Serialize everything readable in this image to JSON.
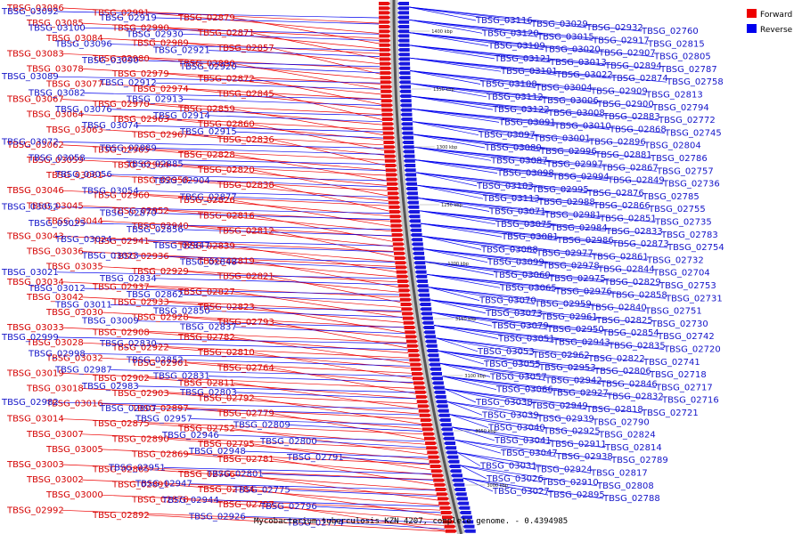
{
  "caption": "Mycobacterium tuberculosis KZN 4207, complete genome. - 0.4394985",
  "legend": [
    {
      "label": "Forward",
      "color": "#ee0000"
    },
    {
      "label": "Reverse",
      "color": "#0000ee"
    }
  ],
  "kbp_labels": [
    "1400 kbp",
    "1350 kbp",
    "1300 kbp",
    "1250 kbp",
    "1200 kbp",
    "3150 kbp",
    "3100 kbp",
    "3050 kbp",
    "3000 kbp"
  ],
  "forward_genes": [
    "TBSG_03086",
    "TBSG_03085",
    "TBSG_03084",
    "TBSG_03083",
    "TBSG_03078",
    "TBSG_03077",
    "TBSG_03067",
    "TBSG_03064",
    "TBSG_03063",
    "TBSG_03062",
    "TBSG_03059",
    "TBSG_03061",
    "TBSG_03046",
    "TBSG_03045",
    "TBSG_03044",
    "TBSG_03043",
    "TBSG_03036",
    "TBSG_03035",
    "TBSG_03034",
    "TBSG_03042",
    "TBSG_03030",
    "TBSG_03033",
    "TBSG_03028",
    "TBSG_03032",
    "TBSG_03019",
    "TBSG_03018",
    "TBSG_03016",
    "TBSG_03014",
    "TBSG_03007",
    "TBSG_03005",
    "TBSG_03003",
    "TBSG_03002",
    "TBSG_03000",
    "TBSG_02992",
    "TBSG_02991",
    "TBSG_02990",
    "TBSG_02989",
    "TBSG_02980",
    "TBSG_02979",
    "TBSG_02974",
    "TBSG_02970",
    "TBSG_02963",
    "TBSG_02967",
    "TBSG_02965",
    "TBSG_02964",
    "TBSG_02958",
    "TBSG_02960",
    "TBSG_02952",
    "TBSG_02940",
    "TBSG_02941",
    "TBSG_02936",
    "TBSG_02929",
    "TBSG_02937",
    "TBSG_02933",
    "TBSG_02928",
    "TBSG_02908",
    "TBSG_02922",
    "TBSG_02901",
    "TBSG_02902",
    "TBSG_02903",
    "TBSG_02897",
    "TBSG_02875",
    "TBSG_02890",
    "TBSG_02869",
    "TBSG_02865",
    "TBSG_02891",
    "TBSG_02878",
    "TBSG_02892",
    "TBSG_02879",
    "TBSG_02871",
    "TBSG_02857",
    "TBSG_02880",
    "TBSG_02872",
    "TBSG_02845",
    "TBSG_02859",
    "TBSG_02860",
    "TBSG_02836",
    "TBSG_02828",
    "TBSG_02820",
    "TBSG_02838",
    "TBSG_02826",
    "TBSG_02816",
    "TBSG_02812",
    "TBSG_02839",
    "TBSG_02819",
    "TBSG_02821",
    "TBSG_02827",
    "TBSG_02823",
    "TBSG_02793",
    "TBSG_02782",
    "TBSG_02810",
    "TBSG_02764",
    "TBSG_02811",
    "TBSG_02792",
    "TBSG_02779",
    "TBSG_02752",
    "TBSG_02795",
    "TBSG_02781",
    "TBSG_02766",
    "TBSG_02784",
    "TBSG_02797"
  ],
  "reverse_genes": [
    "TBSG_03092",
    "TBSG_03100",
    "TBSG_03096",
    "TBSG_03090",
    "TBSG_03089",
    "TBSG_03082",
    "TBSG_03076",
    "TBSG_03074",
    "TBSG_03072",
    "TBSG_03058",
    "TBSG_03056",
    "TBSG_03054",
    "TBSG_03052",
    "TBSG_03025",
    "TBSG_03024",
    "TBSG_03023",
    "TBSG_03021",
    "TBSG_03012",
    "TBSG_03011",
    "TBSG_03009",
    "TBSG_02999",
    "TBSG_02998",
    "TBSG_02987",
    "TBSG_02983",
    "TBSG_02982",
    "TBSG_02957",
    "TBSG_02946",
    "TBSG_02948",
    "TBSG_02951",
    "TBSG_02947",
    "TBSG_02944",
    "TBSG_02926",
    "TBSG_02919",
    "TBSG_02930",
    "TBSG_02921",
    "TBSG_02920",
    "TBSG_02912",
    "TBSG_02913",
    "TBSG_02914",
    "TBSG_02915",
    "TBSG_02889",
    "TBSG_02885",
    "TBSG_02904",
    "TBSG_02877",
    "TBSG_02870",
    "TBSG_02856",
    "TBSG_02847",
    "TBSG_02848",
    "TBSG_02834",
    "TBSG_02862",
    "TBSG_02850",
    "TBSG_02837",
    "TBSG_02830",
    "TBSG_02852",
    "TBSG_02831",
    "TBSG_02803",
    "TBSG_02807",
    "TBSG_02809",
    "TBSG_02800",
    "TBSG_02791",
    "TBSG_02801",
    "TBSG_02775",
    "TBSG_02796",
    "TBSG_02774",
    "TBSG_03116",
    "TBSG_03120",
    "TBSG_03109",
    "TBSG_03121",
    "TBSG_03101",
    "TBSG_03108",
    "TBSG_03112",
    "TBSG_03122",
    "TBSG_03091",
    "TBSG_03097",
    "TBSG_03080",
    "TBSG_03087",
    "TBSG_03098",
    "TBSG_03103",
    "TBSG_03113",
    "TBSG_03071",
    "TBSG_03075",
    "TBSG_03081",
    "TBSG_03088",
    "TBSG_03099",
    "TBSG_03060",
    "TBSG_03065",
    "TBSG_03070",
    "TBSG_03073",
    "TBSG_03079",
    "TBSG_03051",
    "TBSG_03053",
    "TBSG_03055",
    "TBSG_03057",
    "TBSG_03066",
    "TBSG_03038",
    "TBSG_03039",
    "TBSG_03040",
    "TBSG_03041",
    "TBSG_03047",
    "TBSG_03031",
    "TBSG_03026",
    "TBSG_03027",
    "TBSG_03029",
    "TBSG_03015",
    "TBSG_03020",
    "TBSG_03013",
    "TBSG_03022",
    "TBSG_03004",
    "TBSG_03006",
    "TBSG_03008",
    "TBSG_03010",
    "TBSG_03001",
    "TBSG_02996",
    "TBSG_02997",
    "TBSG_02994",
    "TBSG_02995",
    "TBSG_02988",
    "TBSG_02981",
    "TBSG_02984",
    "TBSG_02986",
    "TBSG_02977",
    "TBSG_02978",
    "TBSG_02975",
    "TBSG_02976",
    "TBSG_02959",
    "TBSG_02961",
    "TBSG_02950",
    "TBSG_02943",
    "TBSG_02962",
    "TBSG_02953",
    "TBSG_02942",
    "TBSG_02927",
    "TBSG_02949",
    "TBSG_02939",
    "TBSG_02925",
    "TBSG_02911",
    "TBSG_02938",
    "TBSG_02924",
    "TBSG_02910",
    "TBSG_02895",
    "TBSG_02932",
    "TBSG_02917",
    "TBSG_02907",
    "TBSG_02894",
    "TBSG_02874",
    "TBSG_02909",
    "TBSG_02900",
    "TBSG_02883",
    "TBSG_02868",
    "TBSG_02896",
    "TBSG_02881",
    "TBSG_02867",
    "TBSG_02849",
    "TBSG_02876",
    "TBSG_02866",
    "TBSG_02851",
    "TBSG_02833",
    "TBSG_02873",
    "TBSG_02861",
    "TBSG_02844",
    "TBSG_02829",
    "TBSG_02858",
    "TBSG_02840",
    "TBSG_02825",
    "TBSG_02854",
    "TBSG_02835",
    "TBSG_02822",
    "TBSG_02806",
    "TBSG_02846",
    "TBSG_02832",
    "TBSG_02818",
    "TBSG_02790",
    "TBSG_02824",
    "TBSG_02814",
    "TBSG_02789",
    "TBSG_02817",
    "TBSG_02808",
    "TBSG_02788",
    "TBSG_02760",
    "TBSG_02815",
    "TBSG_02805",
    "TBSG_02787",
    "TBSG_02758",
    "TBSG_02813",
    "TBSG_02794",
    "TBSG_02772",
    "TBSG_02745",
    "TBSG_02804",
    "TBSG_02786",
    "TBSG_02757",
    "TBSG_02736",
    "TBSG_02785",
    "TBSG_02755",
    "TBSG_02735",
    "TBSG_02783",
    "TBSG_02754",
    "TBSG_02732",
    "TBSG_02704",
    "TBSG_02753",
    "TBSG_02731",
    "TBSG_02751",
    "TBSG_02730",
    "TBSG_02742",
    "TBSG_02720",
    "TBSG_02741",
    "TBSG_02718",
    "TBSG_02717",
    "TBSG_02716",
    "TBSG_02721"
  ]
}
